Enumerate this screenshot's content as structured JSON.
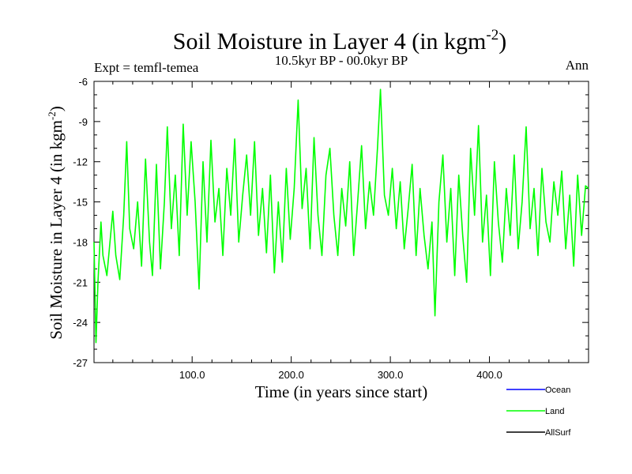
{
  "chart_data": {
    "type": "line",
    "title": "Soil Moisture in Layer 4 (in kgm",
    "title_sup": "-2",
    "title_close": ")",
    "subtitle_left": "Expt = temfl-temea",
    "subtitle_center": "10.5kyr BP - 00.0kyr BP",
    "subtitle_right": "Ann",
    "xlabel": "Time (in years since start)",
    "ylabel": "Soil Moisture in Layer 4 (in kgm",
    "ylabel_sup": "-2",
    "ylabel_close": ")",
    "xlim": [
      1,
      500
    ],
    "ylim": [
      -27,
      -6
    ],
    "xticks": [
      100,
      200,
      300,
      400
    ],
    "xtick_labels": [
      "100.0",
      "200.0",
      "300.0",
      "400.0"
    ],
    "yticks": [
      -6,
      -9,
      -12,
      -15,
      -18,
      -21,
      -24,
      -27
    ],
    "ytick_labels": [
      "-6",
      "-9",
      "-12",
      "-15",
      "-18",
      "-21",
      "-24",
      "-27"
    ],
    "legend": [
      {
        "name": "Ocean",
        "color": "#0000ff"
      },
      {
        "name": "Land",
        "color": "#00ff00"
      },
      {
        "name": "AllSurf",
        "color": "#000000"
      }
    ],
    "series": [
      {
        "name": "Land",
        "color": "#00ff00",
        "x": [
          1,
          3,
          5,
          8,
          10,
          14,
          20,
          23,
          27,
          31,
          34,
          37,
          41,
          45,
          49,
          53,
          57,
          60,
          64,
          68,
          72,
          75,
          79,
          83,
          87,
          91,
          95,
          99,
          103,
          107,
          111,
          115,
          119,
          123,
          127,
          131,
          135,
          139,
          143,
          147,
          151,
          155,
          159,
          163,
          167,
          171,
          175,
          179,
          183,
          187,
          191,
          195,
          199,
          203,
          207,
          211,
          215,
          219,
          223,
          227,
          231,
          235,
          239,
          243,
          247,
          251,
          255,
          259,
          263,
          267,
          271,
          275,
          279,
          283,
          287,
          290,
          294,
          298,
          302,
          306,
          310,
          314,
          318,
          322,
          326,
          330,
          334,
          338,
          342,
          345,
          349,
          353,
          357,
          361,
          365,
          369,
          373,
          377,
          381,
          385,
          389,
          393,
          397,
          401,
          405,
          409,
          413,
          417,
          421,
          425,
          429,
          433,
          437,
          441,
          445,
          449,
          453,
          457,
          461,
          465,
          469,
          473,
          477,
          481,
          485,
          489,
          493,
          497,
          500
        ],
        "values": [
          -18,
          -25.5,
          -21,
          -16.5,
          -19,
          -20.5,
          -15.7,
          -19,
          -20.8,
          -16,
          -10.5,
          -17,
          -18.5,
          -15,
          -19.8,
          -11.8,
          -18,
          -20.5,
          -12.2,
          -20,
          -15,
          -9.4,
          -17,
          -13,
          -19,
          -9.2,
          -16,
          -10.5,
          -15,
          -21.5,
          -12,
          -18,
          -10.4,
          -16.5,
          -14,
          -19,
          -12.5,
          -16,
          -10.3,
          -18,
          -14.5,
          -11.5,
          -16,
          -10.5,
          -17.5,
          -14,
          -18.8,
          -13,
          -20.3,
          -15,
          -19.5,
          -12.5,
          -17.8,
          -14,
          -7.4,
          -15.5,
          -12.5,
          -18.5,
          -10.2,
          -16,
          -19,
          -13,
          -11,
          -16,
          -19,
          -14,
          -16.8,
          -12,
          -19,
          -15,
          -10.8,
          -17,
          -13.5,
          -16,
          -11,
          -6.6,
          -14.5,
          -16,
          -12.5,
          -17,
          -13.5,
          -18.5,
          -15.5,
          -12.2,
          -19,
          -14,
          -17.5,
          -20,
          -16.5,
          -23.5,
          -15,
          -11.5,
          -18,
          -14,
          -20.5,
          -13,
          -17.5,
          -21,
          -11,
          -16,
          -9.3,
          -18,
          -14.5,
          -20.5,
          -12,
          -16.5,
          -19.5,
          -14,
          -17.5,
          -11.5,
          -18.5,
          -15,
          -9.4,
          -17,
          -14,
          -19,
          -12.5,
          -16.5,
          -18,
          -13.5,
          -16,
          -12.7,
          -18.5,
          -14.5,
          -19.8,
          -13,
          -17.5,
          -13.8,
          -14
        ]
      }
    ]
  }
}
